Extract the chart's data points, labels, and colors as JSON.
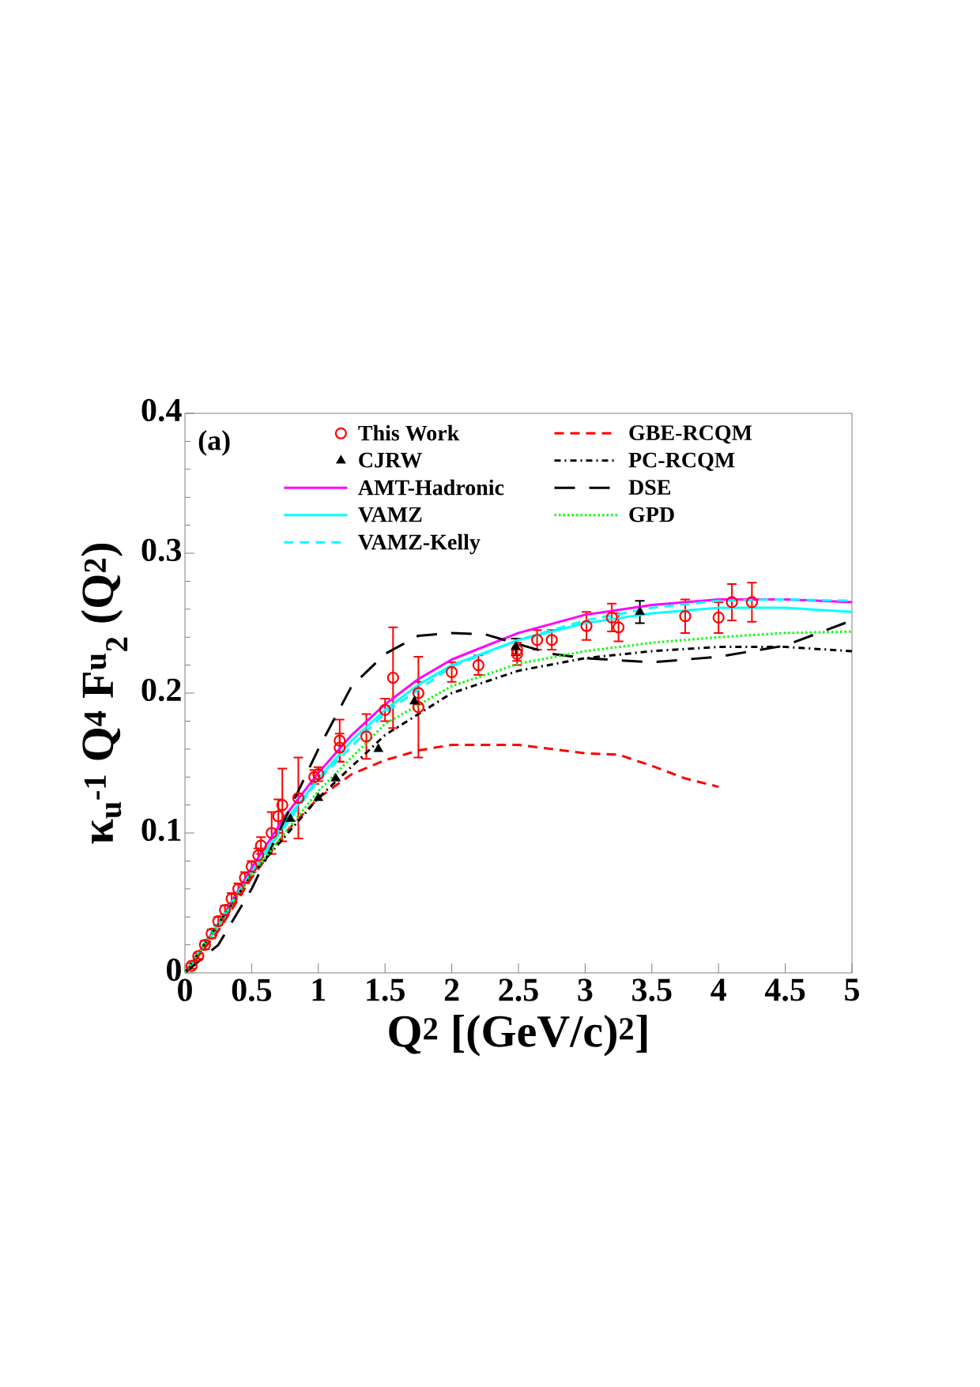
{
  "chart_data": {
    "type": "line",
    "xlabel": "Q$^{2}$ [(GeV/c)$^{2}$]",
    "ylabel": "κ$_{u}$$^{-1}$ Q$^{4}$ F$^{u}$$_{2}$ (Q$^{2}$)",
    "annotations": [
      "(a)"
    ],
    "xlim": [
      0,
      5
    ],
    "ylim": [
      0,
      0.4
    ],
    "xticks": [
      0,
      0.5,
      1,
      1.5,
      2,
      2.5,
      3,
      3.5,
      4,
      4.5,
      5
    ],
    "yticks": [
      0,
      0.1,
      0.2,
      0.3,
      0.4
    ],
    "legend": "top",
    "series": [
      {
        "name": "This Work",
        "type": "scatter",
        "marker": "circle",
        "color": "#ff0000",
        "x": [
          0.05,
          0.1,
          0.15,
          0.2,
          0.25,
          0.3,
          0.35,
          0.4,
          0.45,
          0.5,
          0.55,
          0.57,
          0.65,
          0.7,
          0.73,
          0.85,
          0.97,
          1.0,
          1.16,
          1.16,
          1.36,
          1.5,
          1.56,
          1.75,
          1.75,
          2.0,
          2.2,
          2.49,
          2.49,
          2.64,
          2.75,
          3.01,
          3.2,
          3.25,
          3.75,
          4.0,
          4.1,
          4.25
        ],
        "values": [
          0.005,
          0.012,
          0.02,
          0.028,
          0.037,
          0.045,
          0.053,
          0.06,
          0.068,
          0.076,
          0.084,
          0.091,
          0.1,
          0.112,
          0.12,
          0.125,
          0.14,
          0.142,
          0.166,
          0.161,
          0.169,
          0.188,
          0.211,
          0.2,
          0.19,
          0.215,
          0.22,
          0.228,
          0.231,
          0.238,
          0.238,
          0.248,
          0.254,
          0.247,
          0.255,
          0.254,
          0.265,
          0.265
        ],
        "errors": [
          0.002,
          0.002,
          0.003,
          0.003,
          0.003,
          0.003,
          0.004,
          0.004,
          0.004,
          0.004,
          0.005,
          0.006,
          0.015,
          0.012,
          0.026,
          0.029,
          0.005,
          0.005,
          0.015,
          0.01,
          0.016,
          0.008,
          0.036,
          0.008,
          0.036,
          0.007,
          0.007,
          0.008,
          0.008,
          0.007,
          0.007,
          0.01,
          0.01,
          0.01,
          0.012,
          0.011,
          0.013,
          0.014
        ]
      },
      {
        "name": "CJRW",
        "type": "scatter",
        "marker": "triangle",
        "color": "#000000",
        "x": [
          0.79,
          1.0,
          1.13,
          1.45,
          1.72,
          2.48,
          3.41
        ],
        "values": [
          0.11,
          0.125,
          0.139,
          0.16,
          0.194,
          0.233,
          0.258
        ],
        "errors": [
          null,
          null,
          null,
          null,
          null,
          0.006,
          0.008
        ]
      },
      {
        "name": "AMT-Hadronic",
        "color": "#ff00ff",
        "line_style": "solid",
        "x": [
          0,
          0.25,
          0.5,
          0.75,
          1.0,
          1.25,
          1.5,
          1.75,
          2.0,
          2.5,
          3.0,
          3.5,
          4.0,
          4.5,
          5.0
        ],
        "values": [
          0,
          0.035,
          0.075,
          0.112,
          0.143,
          0.17,
          0.192,
          0.21,
          0.224,
          0.243,
          0.256,
          0.263,
          0.267,
          0.267,
          0.265
        ]
      },
      {
        "name": "VAMZ",
        "color": "#00ffff",
        "line_style": "solid",
        "x": [
          0,
          0.25,
          0.5,
          0.75,
          1.0,
          1.25,
          1.5,
          1.75,
          2.0,
          2.5,
          3.0,
          3.5,
          4.0,
          4.5,
          5.0
        ],
        "values": [
          0,
          0.033,
          0.072,
          0.108,
          0.139,
          0.166,
          0.188,
          0.206,
          0.22,
          0.238,
          0.25,
          0.257,
          0.261,
          0.261,
          0.258
        ]
      },
      {
        "name": "VAMZ-Kelly",
        "color": "#00ffff",
        "line_style": "dashed",
        "x": [
          0,
          0.5,
          1.0,
          1.5,
          2.0,
          2.5,
          3.0,
          3.5,
          4.0,
          4.5,
          5.0
        ],
        "values": [
          0,
          0.072,
          0.138,
          0.186,
          0.219,
          0.238,
          0.252,
          0.261,
          0.266,
          0.267,
          0.266
        ]
      },
      {
        "name": "GBE-RCQM",
        "color": "#ff0000",
        "line_style": "dashed",
        "x": [
          0,
          0.25,
          0.5,
          0.75,
          1.0,
          1.25,
          1.5,
          1.75,
          2.0,
          2.5,
          2.75,
          3.0,
          3.25,
          3.5,
          3.75,
          4.0
        ],
        "values": [
          0,
          0.03,
          0.068,
          0.1,
          0.125,
          0.142,
          0.152,
          0.159,
          0.163,
          0.163,
          0.16,
          0.157,
          0.156,
          0.148,
          0.139,
          0.133
        ]
      },
      {
        "name": "PC-RCQM",
        "color": "#000000",
        "line_style": "dashdot",
        "x": [
          0,
          0.5,
          1.0,
          1.5,
          2.0,
          2.5,
          3.0,
          3.5,
          4.0,
          4.5,
          5.0
        ],
        "values": [
          0,
          0.07,
          0.125,
          0.17,
          0.2,
          0.216,
          0.225,
          0.23,
          0.233,
          0.233,
          0.23
        ]
      },
      {
        "name": "DSE",
        "color": "#000000",
        "line_style": "long dashed",
        "x": [
          0,
          0.25,
          0.5,
          0.75,
          1.0,
          1.25,
          1.5,
          1.75,
          2.0,
          2.25,
          2.5,
          2.75,
          3.0,
          3.5,
          4.0,
          4.5,
          5.0
        ],
        "values": [
          0,
          0.02,
          0.06,
          0.11,
          0.16,
          0.205,
          0.228,
          0.241,
          0.243,
          0.242,
          0.235,
          0.228,
          0.225,
          0.222,
          0.226,
          0.234,
          0.252
        ]
      },
      {
        "name": "GPD",
        "color": "#00ff00",
        "line_style": "dotted",
        "x": [
          0,
          0.5,
          1.0,
          1.5,
          2.0,
          2.5,
          3.0,
          3.5,
          4.0,
          4.5,
          5.0
        ],
        "values": [
          0,
          0.07,
          0.13,
          0.178,
          0.205,
          0.221,
          0.23,
          0.236,
          0.24,
          0.243,
          0.244
        ]
      }
    ]
  }
}
